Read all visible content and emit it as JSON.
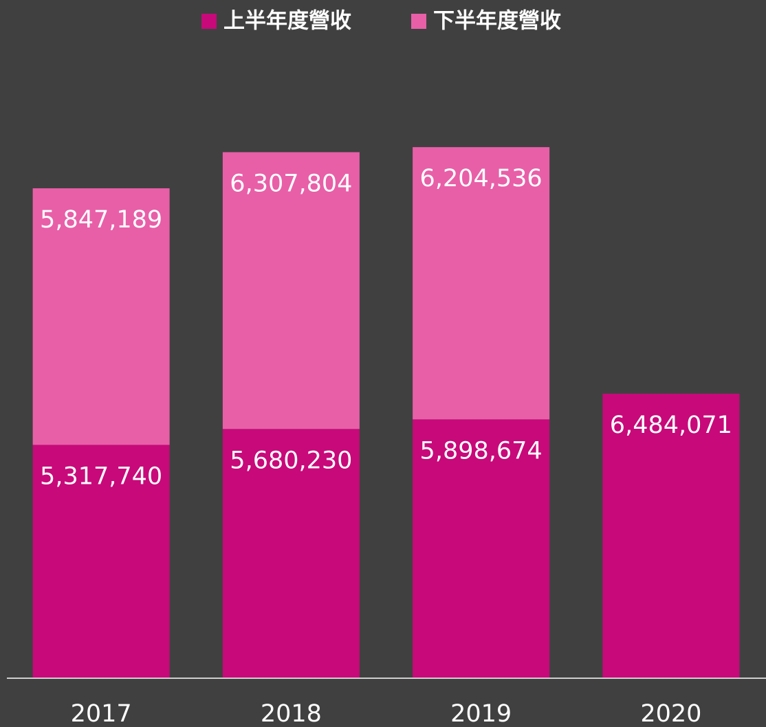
{
  "chart_data": {
    "type": "stacked_bar",
    "categories": [
      "2017",
      "2018",
      "2019",
      "2020"
    ],
    "series": [
      {
        "name": "上半年度營收",
        "color": "#c8097a",
        "values": [
          5317740,
          5680230,
          5898674,
          6484071
        ],
        "value_labels": [
          "5,317,740",
          "5,680,230",
          "5,898,674",
          "6,484,071"
        ]
      },
      {
        "name": "下半年度營收",
        "color": "#e85fa8",
        "values": [
          5847189,
          6307804,
          6204536,
          null
        ],
        "value_labels": [
          "5,847,189",
          "6,307,804",
          "6,204,536",
          null
        ]
      }
    ],
    "ylim": [
      0,
      14000000
    ],
    "legend": "top",
    "grid": false
  }
}
